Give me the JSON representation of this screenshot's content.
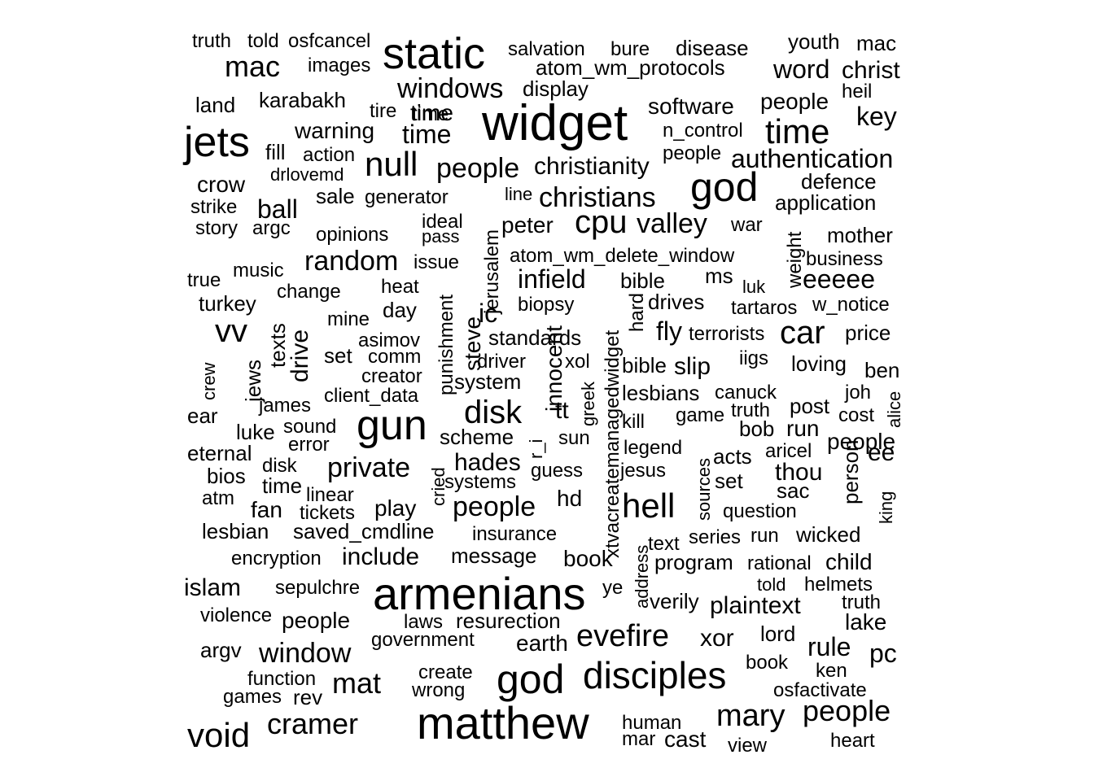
{
  "words": [
    {
      "text": "widget",
      "size": 62
    },
    {
      "text": "static",
      "size": 54
    },
    {
      "text": "armenians",
      "size": 56
    },
    {
      "text": "matthew",
      "size": 56
    },
    {
      "text": "jets",
      "size": 52
    },
    {
      "text": "gun",
      "size": 52
    },
    {
      "text": "god",
      "size": 50
    },
    {
      "text": "god",
      "size": 50
    },
    {
      "text": "disciples",
      "size": 46
    },
    {
      "text": "time",
      "size": 42
    },
    {
      "text": "null",
      "size": 42
    },
    {
      "text": "hell",
      "size": 42
    },
    {
      "text": "void",
      "size": 42
    },
    {
      "text": "disk",
      "size": 40
    },
    {
      "text": "cpu",
      "size": 40
    },
    {
      "text": "car",
      "size": 40
    },
    {
      "text": "vv",
      "size": 40
    },
    {
      "text": "evefire",
      "size": 38
    },
    {
      "text": "mary",
      "size": 38
    },
    {
      "text": "cramer",
      "size": 36
    },
    {
      "text": "mac",
      "size": 36
    },
    {
      "text": "mat",
      "size": 36
    },
    {
      "text": "people",
      "size": 36
    },
    {
      "text": "windows",
      "size": 34
    },
    {
      "text": "christians",
      "size": 34
    },
    {
      "text": "people",
      "size": 34
    },
    {
      "text": "valley",
      "size": 34
    },
    {
      "text": "people",
      "size": 34
    },
    {
      "text": "random",
      "size": 34
    },
    {
      "text": "window",
      "size": 34
    },
    {
      "text": "private",
      "size": 34
    },
    {
      "text": "time",
      "size": 32
    },
    {
      "text": "authentication",
      "size": 32
    },
    {
      "text": "key",
      "size": 32
    },
    {
      "text": "word",
      "size": 32
    },
    {
      "text": "eeeee",
      "size": 32
    },
    {
      "text": "ball",
      "size": 32
    },
    {
      "text": "infield",
      "size": 32
    },
    {
      "text": "hades",
      "size": 30
    },
    {
      "text": "fly",
      "size": 32
    },
    {
      "text": "ic",
      "size": 32
    },
    {
      "text": "christ",
      "size": 30
    },
    {
      "text": "christianity",
      "size": 30
    },
    {
      "text": "software",
      "size": 28
    },
    {
      "text": "warning",
      "size": 28
    },
    {
      "text": "people",
      "size": 28
    },
    {
      "text": "time",
      "size": 28
    },
    {
      "text": "islam",
      "size": 30
    },
    {
      "text": "rule",
      "size": 32
    },
    {
      "text": "pc",
      "size": 32
    },
    {
      "text": "include",
      "size": 30
    },
    {
      "text": "slip",
      "size": 30
    },
    {
      "text": "plaintext",
      "size": 30
    },
    {
      "text": "xor",
      "size": 30
    },
    {
      "text": "thou",
      "size": 30
    },
    {
      "text": "play",
      "size": 28
    },
    {
      "text": "hd",
      "size": 28
    },
    {
      "text": "people",
      "size": 28
    },
    {
      "text": "ee",
      "size": 30
    },
    {
      "text": "run",
      "size": 28
    },
    {
      "text": "drive",
      "size": 30
    },
    {
      "text": "tt",
      "size": 30
    },
    {
      "text": "fan",
      "size": 28
    },
    {
      "text": "lake",
      "size": 28
    },
    {
      "text": "book",
      "size": 28
    },
    {
      "text": "earth",
      "size": 28
    },
    {
      "text": "saved_cmdline",
      "size": 26
    },
    {
      "text": "message",
      "size": 26
    },
    {
      "text": "child",
      "size": 28
    },
    {
      "text": "disease",
      "size": 26
    },
    {
      "text": "youth",
      "size": 26
    },
    {
      "text": "mac",
      "size": 26
    },
    {
      "text": "standards",
      "size": 26
    },
    {
      "text": "luke",
      "size": 26
    },
    {
      "text": "sac",
      "size": 26
    },
    {
      "text": "argv",
      "size": 26
    },
    {
      "text": "price",
      "size": 26
    },
    {
      "text": "salvation",
      "size": 24
    },
    {
      "text": "bure",
      "size": 24
    },
    {
      "text": "atom_wm_protocols",
      "size": 26
    },
    {
      "text": "display",
      "size": 26
    },
    {
      "text": "generator",
      "size": 24
    },
    {
      "text": "sale",
      "size": 26
    },
    {
      "text": "peter",
      "size": 28
    },
    {
      "text": "opinions",
      "size": 24
    },
    {
      "text": "ideal",
      "size": 24
    },
    {
      "text": "issue",
      "size": 24
    },
    {
      "text": "music",
      "size": 24
    },
    {
      "text": "turkey",
      "size": 26
    },
    {
      "text": "heat",
      "size": 24
    },
    {
      "text": "day",
      "size": 26
    },
    {
      "text": "biopsy",
      "size": 24
    },
    {
      "text": "drives",
      "size": 26
    },
    {
      "text": "tartaros",
      "size": 24
    },
    {
      "text": "w_notice",
      "size": 24
    },
    {
      "text": "application",
      "size": 26
    },
    {
      "text": "defence",
      "size": 26
    },
    {
      "text": "mother",
      "size": 26
    },
    {
      "text": "business",
      "size": 24
    },
    {
      "text": "bible",
      "size": 26
    },
    {
      "text": "bible",
      "size": 26
    },
    {
      "text": "ms",
      "size": 26
    },
    {
      "text": "lesbians",
      "size": 26
    },
    {
      "text": "loving",
      "size": 26
    },
    {
      "text": "ben",
      "size": 26
    },
    {
      "text": "post",
      "size": 26
    },
    {
      "text": "bob",
      "size": 26
    },
    {
      "text": "acts",
      "size": 26
    },
    {
      "text": "set",
      "size": 26
    },
    {
      "text": "question",
      "size": 24
    },
    {
      "text": "run",
      "size": 24
    },
    {
      "text": "wicked",
      "size": 26
    },
    {
      "text": "verily",
      "size": 26
    },
    {
      "text": "lord",
      "size": 26
    },
    {
      "text": "helmets",
      "size": 24
    },
    {
      "text": "truth",
      "size": 24
    },
    {
      "text": "ken",
      "size": 24
    },
    {
      "text": "osfactivate",
      "size": 24
    },
    {
      "text": "book",
      "size": 24
    },
    {
      "text": "human",
      "size": 24
    },
    {
      "text": "mar",
      "size": 24
    },
    {
      "text": "cast",
      "size": 28
    },
    {
      "text": "view",
      "size": 24
    },
    {
      "text": "heart",
      "size": 24
    },
    {
      "text": "create",
      "size": 24
    },
    {
      "text": "wrong",
      "size": 24
    },
    {
      "text": "function",
      "size": 24
    },
    {
      "text": "games",
      "size": 24
    },
    {
      "text": "rev",
      "size": 26
    },
    {
      "text": "government",
      "size": 24
    },
    {
      "text": "laws",
      "size": 24
    },
    {
      "text": "resurection",
      "size": 26
    },
    {
      "text": "people",
      "size": 28
    },
    {
      "text": "violence",
      "size": 24
    },
    {
      "text": "sepulchre",
      "size": 24
    },
    {
      "text": "encryption",
      "size": 24
    },
    {
      "text": "insurance",
      "size": 24
    },
    {
      "text": "scheme",
      "size": 26
    },
    {
      "text": "systems",
      "size": 24
    },
    {
      "text": "guess",
      "size": 24
    },
    {
      "text": "sun",
      "size": 24
    },
    {
      "text": "legend",
      "size": 24
    },
    {
      "text": "jesus",
      "size": 24
    },
    {
      "text": "aricel",
      "size": 24
    },
    {
      "text": "game",
      "size": 24
    },
    {
      "text": "truth",
      "size": 24
    },
    {
      "text": "canuck",
      "size": 24
    },
    {
      "text": "kill",
      "size": 24
    },
    {
      "text": "joh",
      "size": 24
    },
    {
      "text": "cost",
      "size": 24
    },
    {
      "text": "terrorists",
      "size": 24
    },
    {
      "text": "iigs",
      "size": 24
    },
    {
      "text": "driver",
      "size": 24
    },
    {
      "text": "xol",
      "size": 24
    },
    {
      "text": "system",
      "size": 26
    },
    {
      "text": "comm",
      "size": 24
    },
    {
      "text": "creator",
      "size": 24
    },
    {
      "text": "client_data",
      "size": 24
    },
    {
      "text": "james",
      "size": 24
    },
    {
      "text": "sound",
      "size": 24
    },
    {
      "text": "error",
      "size": 24
    },
    {
      "text": "eternal",
      "size": 26
    },
    {
      "text": "bios",
      "size": 26
    },
    {
      "text": "disk",
      "size": 24
    },
    {
      "text": "time",
      "size": 26
    },
    {
      "text": "atm",
      "size": 24
    },
    {
      "text": "linear",
      "size": 24
    },
    {
      "text": "tickets",
      "size": 24
    },
    {
      "text": "lesbian",
      "size": 26
    },
    {
      "text": "ear",
      "size": 26
    },
    {
      "text": "asimov",
      "size": 24
    },
    {
      "text": "mine",
      "size": 24
    },
    {
      "text": "set",
      "size": 26
    },
    {
      "text": "change",
      "size": 24
    },
    {
      "text": "true",
      "size": 24
    },
    {
      "text": "story",
      "size": 24
    },
    {
      "text": "argc",
      "size": 24
    },
    {
      "text": "pass",
      "size": 22
    },
    {
      "text": "strike",
      "size": 24
    },
    {
      "text": "crow",
      "size": 28
    },
    {
      "text": "drlovemd",
      "size": 22
    },
    {
      "text": "fill",
      "size": 26
    },
    {
      "text": "action",
      "size": 24
    },
    {
      "text": "land",
      "size": 26
    },
    {
      "text": "karabakh",
      "size": 26
    },
    {
      "text": "tire",
      "size": 24
    },
    {
      "text": "time",
      "size": 24
    },
    {
      "text": "truth",
      "size": 24
    },
    {
      "text": "told",
      "size": 24
    },
    {
      "text": "osfcancel",
      "size": 24
    },
    {
      "text": "images",
      "size": 24
    },
    {
      "text": "heil",
      "size": 24
    },
    {
      "text": "n_control",
      "size": 24
    },
    {
      "text": "people",
      "size": 24
    },
    {
      "text": "line",
      "size": 22
    },
    {
      "text": "war",
      "size": 24
    },
    {
      "text": "atom_wm_delete_window",
      "size": 24
    },
    {
      "text": "luk",
      "size": 22
    },
    {
      "text": "program",
      "size": 26
    },
    {
      "text": "rational",
      "size": 24
    },
    {
      "text": "series",
      "size": 24
    },
    {
      "text": "text",
      "size": 24
    },
    {
      "text": "told",
      "size": 22
    },
    {
      "text": "ye",
      "size": 24
    },
    {
      "text": "jerusalem",
      "size": 24
    },
    {
      "text": "punishment",
      "size": 24
    },
    {
      "text": "steve",
      "size": 28
    },
    {
      "text": "texts",
      "size": 26
    },
    {
      "text": "jews",
      "size": 26
    },
    {
      "text": "crew",
      "size": 22
    },
    {
      "text": "cried",
      "size": 22
    },
    {
      "text": "r_i",
      "size": 22
    },
    {
      "text": "innocent",
      "size": 28
    },
    {
      "text": "greek",
      "size": 22
    },
    {
      "text": "xtvacreatemanagedwidget",
      "size": 24
    },
    {
      "text": "hard",
      "size": 24
    },
    {
      "text": "address",
      "size": 22
    },
    {
      "text": "sources",
      "size": 22
    },
    {
      "text": "person",
      "size": 26
    },
    {
      "text": "king",
      "size": 22
    },
    {
      "text": "alice",
      "size": 22
    },
    {
      "text": "weight",
      "size": 24
    }
  ]
}
